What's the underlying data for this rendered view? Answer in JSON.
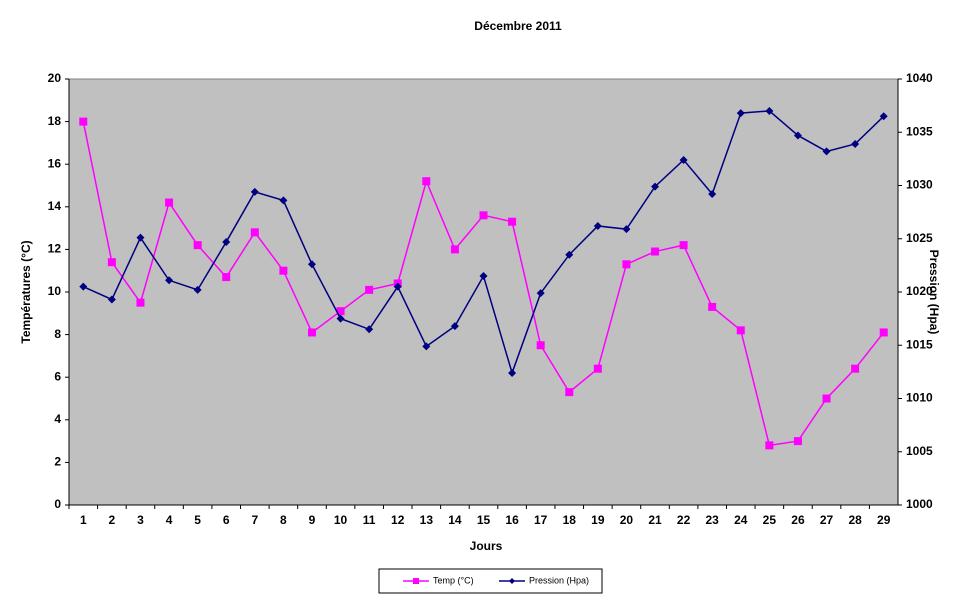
{
  "chart_data": {
    "type": "line",
    "title": "Décembre 2011",
    "x_label": "Jours",
    "y_label": "Températures (°C)",
    "y2_label": "Pression (Hpa)",
    "categories": [
      "1",
      "2",
      "3",
      "4",
      "5",
      "6",
      "7",
      "8",
      "9",
      "10",
      "11",
      "12",
      "13",
      "14",
      "15",
      "16",
      "17",
      "18",
      "19",
      "20",
      "21",
      "22",
      "23",
      "24",
      "25",
      "26",
      "27",
      "28",
      "29"
    ],
    "series": [
      {
        "name": "Temp (°C)",
        "color": "#ff00ff",
        "marker": "square",
        "axis": "y",
        "values": [
          18,
          11.4,
          9.5,
          14.2,
          12.2,
          10.7,
          12.8,
          11,
          8.1,
          9.1,
          10.1,
          10.4,
          15.2,
          12,
          13.6,
          13.3,
          7.5,
          5.3,
          6.4,
          11.3,
          11.9,
          12.2,
          9.3,
          8.2,
          2.8,
          3,
          5,
          6.4,
          8.1
        ]
      },
      {
        "name": "Pression (Hpa)",
        "color": "#000080",
        "marker": "diamond",
        "axis": "y2",
        "values": [
          1020.5,
          1019.3,
          1025.1,
          1021.1,
          1020.2,
          1024.7,
          1029.4,
          1028.6,
          1022.6,
          1017.5,
          1016.5,
          1020.5,
          1014.9,
          1016.8,
          1021.5,
          1012.4,
          1019.9,
          1023.5,
          1026.2,
          1025.9,
          1029.9,
          1032.4,
          1029.2,
          1036.8,
          1037.0,
          1034.7,
          1033.2,
          1033.9,
          1036.5
        ]
      }
    ],
    "ylim": [
      0,
      20
    ],
    "yticks": [
      0,
      2,
      4,
      6,
      8,
      10,
      12,
      14,
      16,
      18,
      20
    ],
    "y2lim": [
      1000,
      1040
    ],
    "y2ticks": [
      1000,
      1005,
      1010,
      1015,
      1020,
      1025,
      1030,
      1035,
      1040
    ],
    "plot_background": "#c0c0c0",
    "grid": false,
    "legend": "bottom"
  }
}
